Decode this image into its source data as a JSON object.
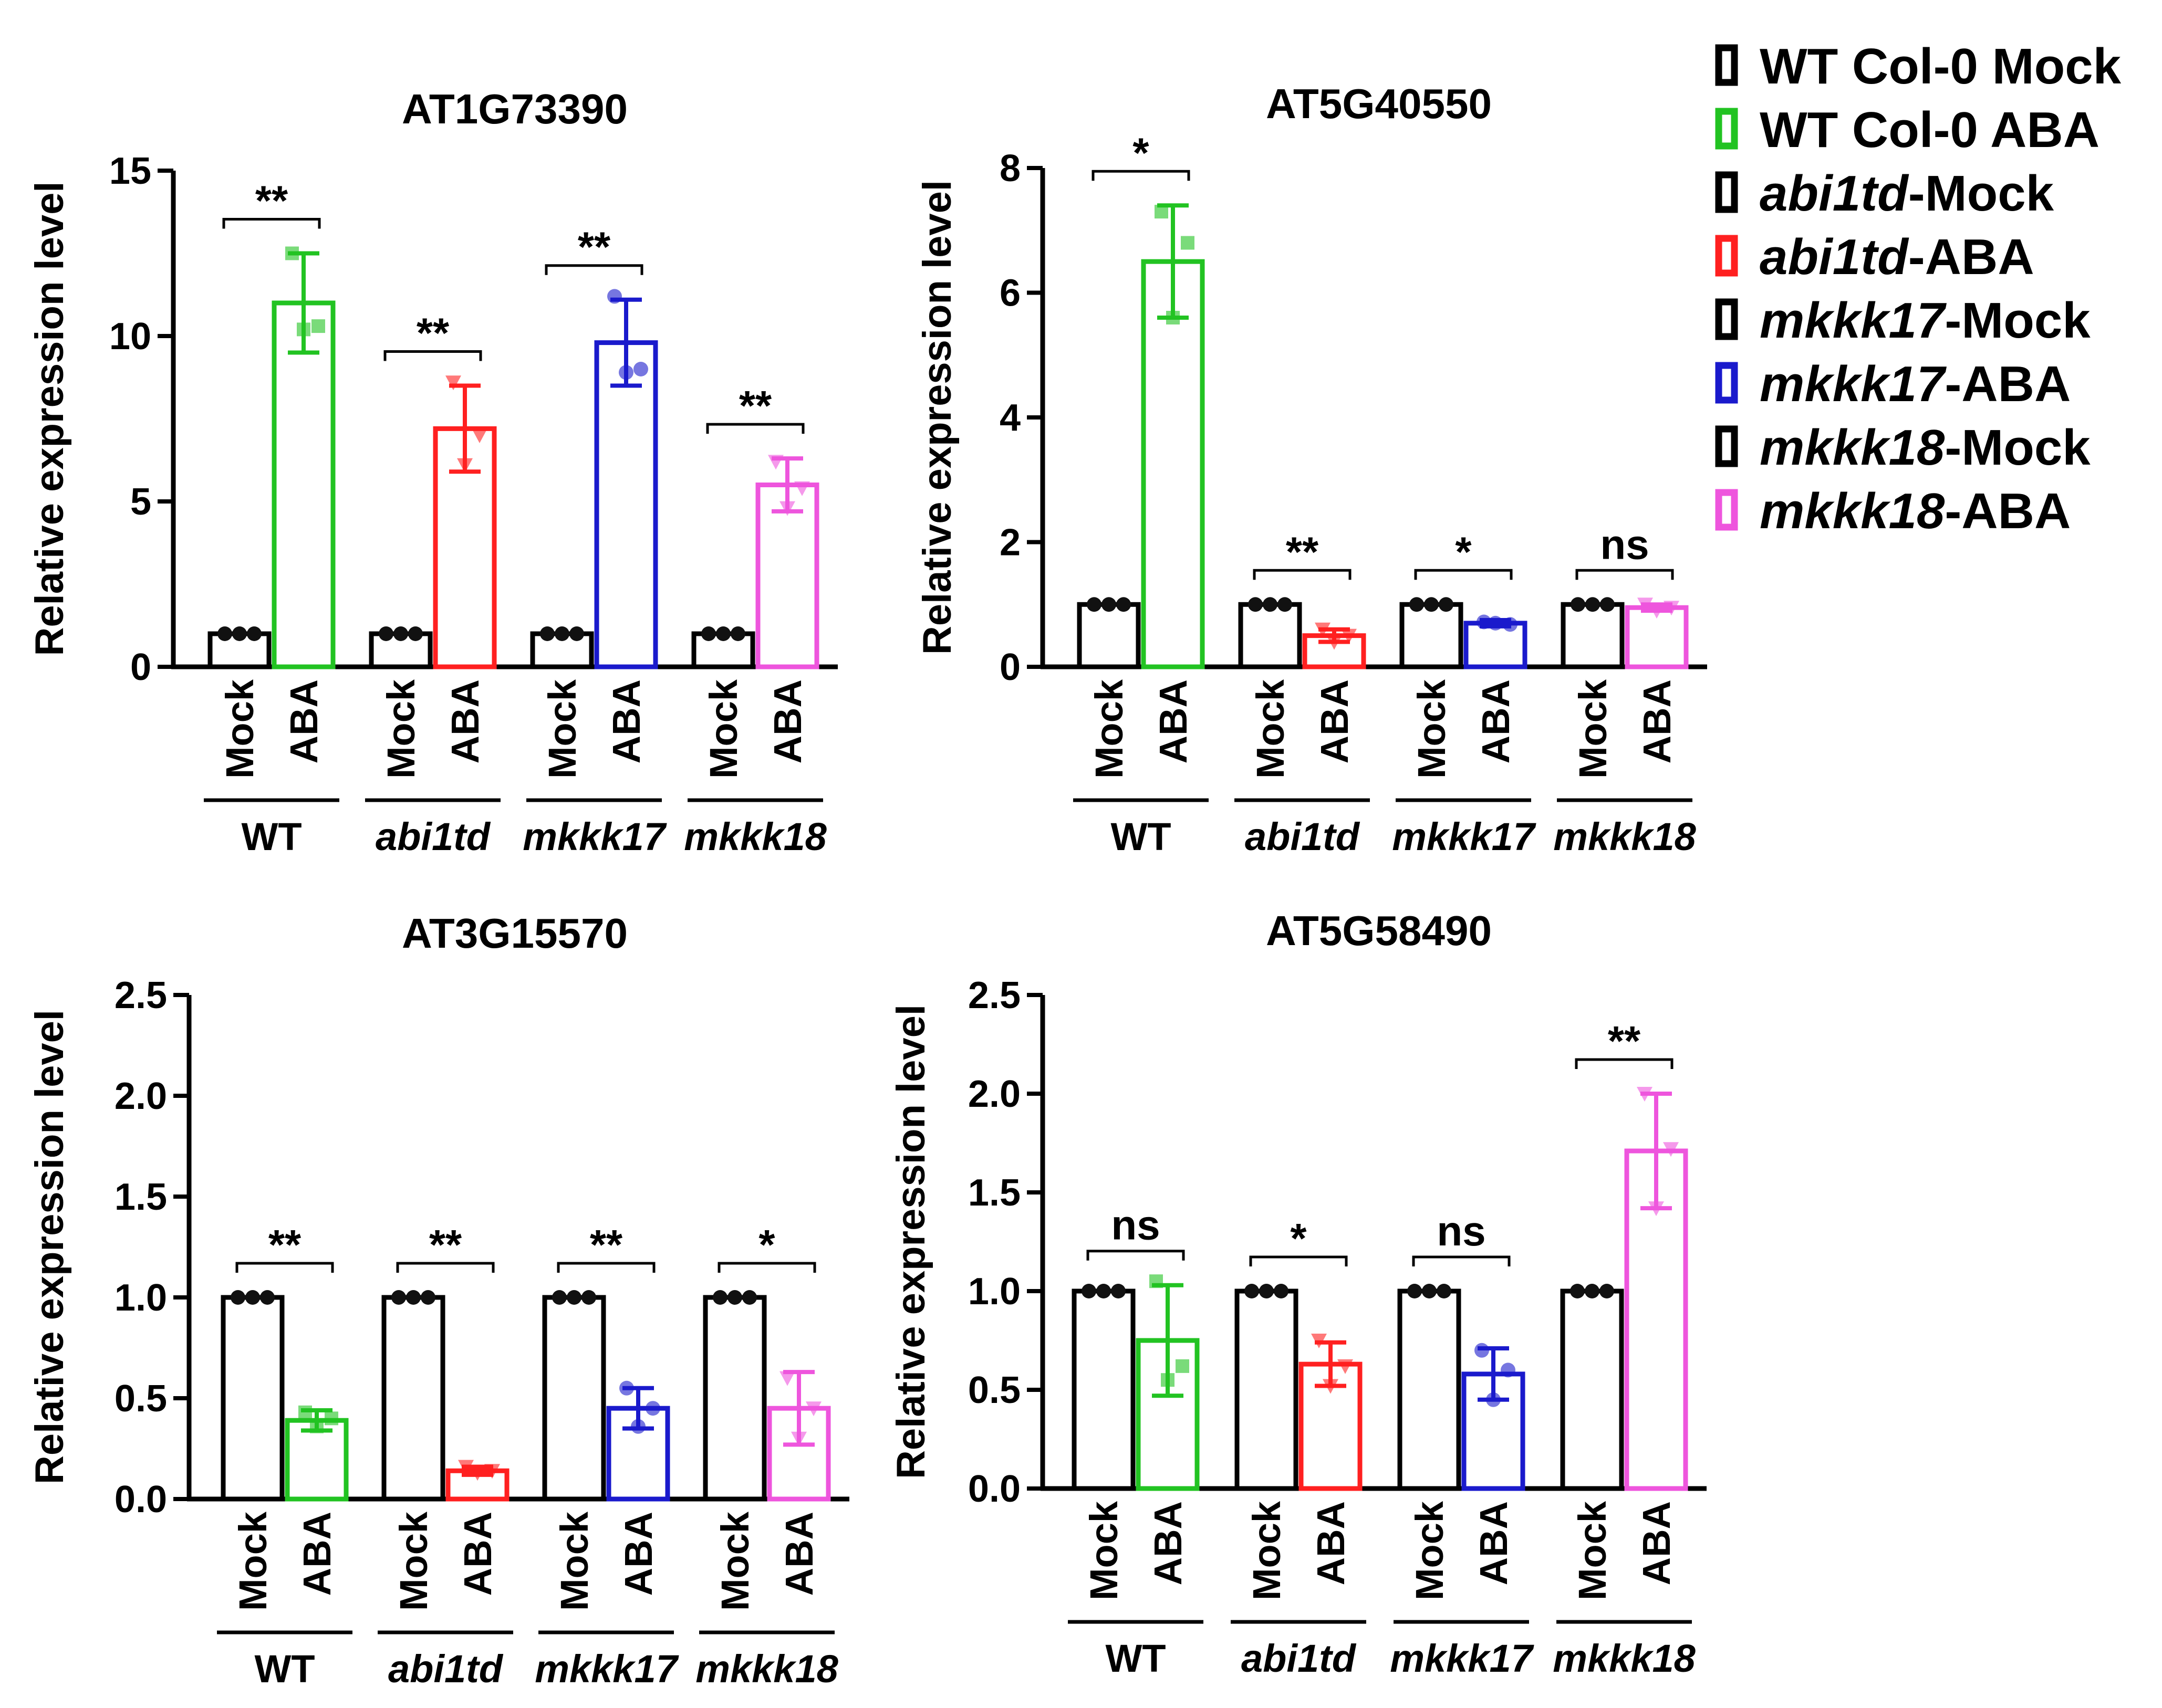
{
  "legend": {
    "items": [
      {
        "parts": [
          {
            "text": "WT Col-0 Mock",
            "italic": false
          }
        ],
        "color": "#000000"
      },
      {
        "parts": [
          {
            "text": "WT Col-0 ABA",
            "italic": false
          }
        ],
        "color": "#22c322"
      },
      {
        "parts": [
          {
            "text": "abi1td",
            "italic": true
          },
          {
            "text": "-Mock",
            "italic": false
          }
        ],
        "color": "#000000"
      },
      {
        "parts": [
          {
            "text": "abi1td",
            "italic": true
          },
          {
            "text": "-ABA",
            "italic": false
          }
        ],
        "color": "#ff2020"
      },
      {
        "parts": [
          {
            "text": "mkkk17",
            "italic": true
          },
          {
            "text": "-Mock",
            "italic": false
          }
        ],
        "color": "#000000"
      },
      {
        "parts": [
          {
            "text": "mkkk17",
            "italic": true
          },
          {
            "text": "-ABA",
            "italic": false
          }
        ],
        "color": "#1a1acc"
      },
      {
        "parts": [
          {
            "text": "mkkk18",
            "italic": true
          },
          {
            "text": "-Mock",
            "italic": false
          }
        ],
        "color": "#000000"
      },
      {
        "parts": [
          {
            "text": "mkkk18",
            "italic": true
          },
          {
            "text": "-ABA",
            "italic": false
          }
        ],
        "color": "#ee55dd"
      }
    ]
  },
  "colors": {
    "mock": "#000000",
    "WT": "#22c322",
    "abi1td": "#ff2020",
    "mkkk17": "#1a1acc",
    "mkkk18": "#ee55dd"
  },
  "chart_data": [
    {
      "type": "bar",
      "title": "AT1G73390",
      "ylabel": "Relative expression level",
      "ylim": [
        0,
        15
      ],
      "yticks": [
        "0",
        "5",
        "10",
        "15"
      ],
      "ytick_values": [
        0,
        5,
        10,
        15
      ],
      "bar_labels": [
        "Mock",
        "ABA"
      ],
      "groups": [
        {
          "name": "WT",
          "italic": false,
          "color_key": "WT",
          "marker": "square",
          "mock": 1,
          "aba": 11.0,
          "aba_err": 1.5,
          "aba_points": [
            12.5,
            10.3,
            10.2
          ],
          "sig": "**"
        },
        {
          "name": "abi1td",
          "italic": true,
          "color_key": "abi1td",
          "marker": "triangle",
          "mock": 1,
          "aba": 7.2,
          "aba_err": 1.3,
          "aba_points": [
            8.6,
            7.0,
            6.1
          ],
          "sig": "**"
        },
        {
          "name": "mkkk17",
          "italic": true,
          "color_key": "mkkk17",
          "marker": "circle",
          "mock": 1,
          "aba": 9.8,
          "aba_err": 1.3,
          "aba_points": [
            11.2,
            9.0,
            8.9
          ],
          "sig": "**"
        },
        {
          "name": "mkkk18",
          "italic": true,
          "color_key": "mkkk18",
          "marker": "triangle",
          "mock": 1,
          "aba": 5.5,
          "aba_err": 0.8,
          "aba_points": [
            6.2,
            5.4,
            4.8
          ],
          "sig": "**"
        }
      ]
    },
    {
      "type": "bar",
      "title": "AT5G40550",
      "ylabel": "Relative expression level",
      "ylim": [
        0,
        8
      ],
      "yticks": [
        "0",
        "2",
        "4",
        "6",
        "8"
      ],
      "ytick_values": [
        0,
        2,
        4,
        6,
        8
      ],
      "bar_labels": [
        "Mock",
        "ABA"
      ],
      "groups": [
        {
          "name": "WT",
          "italic": false,
          "color_key": "WT",
          "marker": "square",
          "mock": 1,
          "aba": 6.5,
          "aba_err": 0.9,
          "aba_points": [
            7.3,
            6.8,
            5.6
          ],
          "sig": "*"
        },
        {
          "name": "abi1td",
          "italic": true,
          "color_key": "abi1td",
          "marker": "triangle",
          "mock": 1,
          "aba": 0.5,
          "aba_err": 0.1,
          "aba_points": [
            0.6,
            0.5,
            0.4
          ],
          "sig": "**"
        },
        {
          "name": "mkkk17",
          "italic": true,
          "color_key": "mkkk17",
          "marker": "circle",
          "mock": 1,
          "aba": 0.7,
          "aba_err": 0.05,
          "aba_points": [
            0.72,
            0.68,
            0.7
          ],
          "sig": "*"
        },
        {
          "name": "mkkk18",
          "italic": true,
          "color_key": "mkkk18",
          "marker": "triangle",
          "mock": 1,
          "aba": 0.95,
          "aba_err": 0.05,
          "aba_points": [
            1.0,
            0.95,
            0.9
          ],
          "sig": "ns"
        }
      ]
    },
    {
      "type": "bar",
      "title": "AT3G15570",
      "ylabel": "Relative expression level",
      "ylim": [
        0,
        2.5
      ],
      "yticks": [
        "0.0",
        "0.5",
        "1.0",
        "1.5",
        "2.0",
        "2.5"
      ],
      "ytick_values": [
        0,
        0.5,
        1.0,
        1.5,
        2.0,
        2.5
      ],
      "bar_labels": [
        "Mock",
        "ABA"
      ],
      "groups": [
        {
          "name": "WT",
          "italic": false,
          "color_key": "WT",
          "marker": "square",
          "mock": 1,
          "aba": 0.39,
          "aba_err": 0.05,
          "aba_points": [
            0.43,
            0.4,
            0.36
          ],
          "sig": "**"
        },
        {
          "name": "abi1td",
          "italic": true,
          "color_key": "abi1td",
          "marker": "triangle",
          "mock": 1,
          "aba": 0.14,
          "aba_err": 0.02,
          "aba_points": [
            0.16,
            0.14,
            0.13
          ],
          "sig": "**"
        },
        {
          "name": "mkkk17",
          "italic": true,
          "color_key": "mkkk17",
          "marker": "circle",
          "mock": 1,
          "aba": 0.45,
          "aba_err": 0.1,
          "aba_points": [
            0.55,
            0.45,
            0.36
          ],
          "sig": "**"
        },
        {
          "name": "mkkk18",
          "italic": true,
          "color_key": "mkkk18",
          "marker": "triangle",
          "mock": 1,
          "aba": 0.45,
          "aba_err": 0.18,
          "aba_points": [
            0.6,
            0.45,
            0.3
          ],
          "sig": "*"
        }
      ]
    },
    {
      "type": "bar",
      "title": "AT5G58490",
      "ylabel": "Relative expression level",
      "ylim": [
        0,
        2.5
      ],
      "yticks": [
        "0.0",
        "0.5",
        "1.0",
        "1.5",
        "2.0",
        "2.5"
      ],
      "ytick_values": [
        0,
        0.5,
        1.0,
        1.5,
        2.0,
        2.5
      ],
      "bar_labels": [
        "Mock",
        "ABA"
      ],
      "groups": [
        {
          "name": "WT",
          "italic": false,
          "color_key": "WT",
          "marker": "square",
          "mock": 1,
          "aba": 0.75,
          "aba_err": 0.28,
          "aba_points": [
            1.05,
            0.62,
            0.55
          ],
          "sig": "ns"
        },
        {
          "name": "abi1td",
          "italic": true,
          "color_key": "abi1td",
          "marker": "triangle",
          "mock": 1,
          "aba": 0.63,
          "aba_err": 0.11,
          "aba_points": [
            0.75,
            0.62,
            0.52
          ],
          "sig": "*"
        },
        {
          "name": "mkkk17",
          "italic": true,
          "color_key": "mkkk17",
          "marker": "circle",
          "mock": 1,
          "aba": 0.58,
          "aba_err": 0.13,
          "aba_points": [
            0.7,
            0.6,
            0.45
          ],
          "sig": "ns"
        },
        {
          "name": "mkkk18",
          "italic": true,
          "color_key": "mkkk18",
          "marker": "triangle",
          "mock": 1,
          "aba": 1.71,
          "aba_err": 0.29,
          "aba_points": [
            2.0,
            1.72,
            1.42
          ],
          "sig": "**"
        }
      ]
    }
  ]
}
